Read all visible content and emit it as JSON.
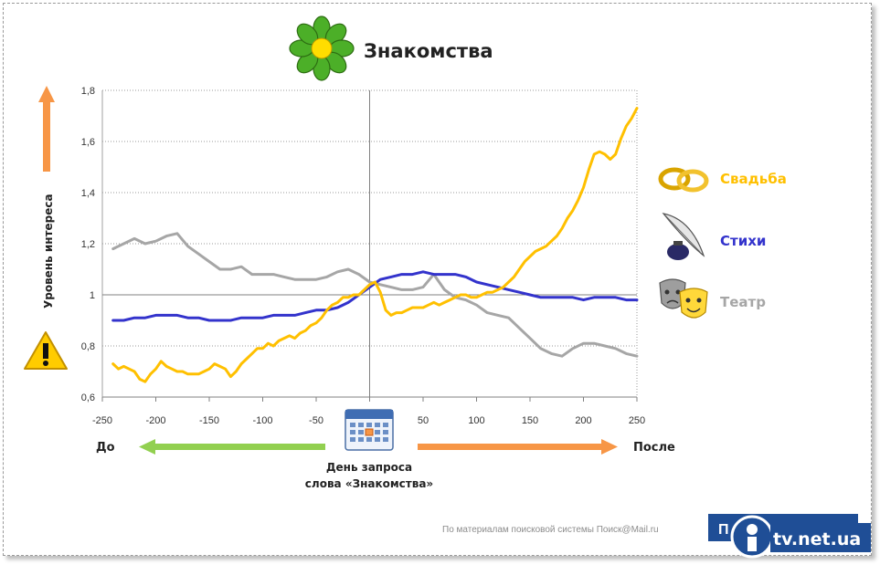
{
  "title": "Знакомства",
  "y_axis_label": "Уровень интереса",
  "before_label": "До",
  "after_label": "После",
  "center_caption_line1": "День запроса",
  "center_caption_line2": "слова «Знакомства»",
  "footer_source": "По материалам поисковой системы Поиск@Mail.ru",
  "footer_button_text": "П",
  "watermark": "tv.net.ua",
  "colors": {
    "yellow": "#ffc000",
    "blue": "#3333cc",
    "gray": "#a6a6a6",
    "green_arrow": "#92d050",
    "orange_arrow": "#f79646",
    "footer_button": "#1f4e96"
  },
  "chart_data": {
    "type": "line",
    "title": "Знакомства",
    "xlim": [
      -250,
      250
    ],
    "ylim": [
      0.6,
      1.8
    ],
    "x_ticks": [
      "-250",
      "-200",
      "-150",
      "-100",
      "-50",
      "0",
      "50",
      "100",
      "150",
      "200",
      "250"
    ],
    "y_ticks": [
      "0,6",
      "0,8",
      "1",
      "1,2",
      "1,4",
      "1,6",
      "1,8"
    ],
    "grid": "horizontal dotted",
    "reference_lines": {
      "x": 0,
      "y": 1
    },
    "legend_placement": "right",
    "series": [
      {
        "name": "Свадьба",
        "color": "#ffc000",
        "x": [
          -240,
          -235,
          -230,
          -225,
          -220,
          -215,
          -210,
          -205,
          -200,
          -195,
          -190,
          -185,
          -180,
          -175,
          -170,
          -165,
          -160,
          -155,
          -150,
          -145,
          -140,
          -135,
          -130,
          -125,
          -120,
          -115,
          -110,
          -105,
          -100,
          -95,
          -90,
          -85,
          -80,
          -75,
          -70,
          -65,
          -60,
          -55,
          -50,
          -45,
          -40,
          -35,
          -30,
          -25,
          -20,
          -15,
          -10,
          -5,
          0,
          5,
          10,
          15,
          20,
          25,
          30,
          35,
          40,
          45,
          50,
          55,
          60,
          65,
          70,
          75,
          80,
          85,
          90,
          95,
          100,
          105,
          110,
          115,
          120,
          125,
          130,
          135,
          140,
          145,
          150,
          155,
          160,
          165,
          170,
          175,
          180,
          185,
          190,
          195,
          200,
          205,
          210,
          215,
          220,
          225,
          230,
          235,
          240,
          245,
          250
        ],
        "y": [
          0.73,
          0.71,
          0.72,
          0.71,
          0.7,
          0.67,
          0.66,
          0.69,
          0.71,
          0.74,
          0.72,
          0.71,
          0.7,
          0.7,
          0.69,
          0.69,
          0.69,
          0.7,
          0.71,
          0.73,
          0.72,
          0.71,
          0.68,
          0.7,
          0.73,
          0.75,
          0.77,
          0.79,
          0.79,
          0.81,
          0.8,
          0.82,
          0.83,
          0.84,
          0.83,
          0.85,
          0.86,
          0.88,
          0.89,
          0.91,
          0.94,
          0.96,
          0.97,
          0.99,
          0.99,
          1.0,
          1.0,
          1.02,
          1.04,
          1.05,
          1.01,
          0.94,
          0.92,
          0.93,
          0.93,
          0.94,
          0.95,
          0.95,
          0.95,
          0.96,
          0.97,
          0.96,
          0.97,
          0.98,
          0.99,
          1.0,
          1.0,
          0.99,
          0.99,
          1.0,
          1.01,
          1.01,
          1.02,
          1.03,
          1.05,
          1.07,
          1.1,
          1.13,
          1.15,
          1.17,
          1.18,
          1.19,
          1.21,
          1.23,
          1.26,
          1.3,
          1.33,
          1.37,
          1.42,
          1.49,
          1.55,
          1.56,
          1.55,
          1.53,
          1.55,
          1.61,
          1.66,
          1.69,
          1.73
        ]
      },
      {
        "name": "Стихи",
        "color": "#3333cc",
        "x": [
          -240,
          -230,
          -220,
          -210,
          -200,
          -190,
          -180,
          -170,
          -160,
          -150,
          -140,
          -130,
          -120,
          -110,
          -100,
          -90,
          -80,
          -70,
          -60,
          -50,
          -40,
          -30,
          -20,
          -10,
          0,
          10,
          20,
          30,
          40,
          50,
          60,
          70,
          80,
          90,
          100,
          110,
          120,
          130,
          140,
          150,
          160,
          170,
          180,
          190,
          200,
          210,
          220,
          230,
          240,
          250
        ],
        "y": [
          0.9,
          0.9,
          0.91,
          0.91,
          0.92,
          0.92,
          0.92,
          0.91,
          0.91,
          0.9,
          0.9,
          0.9,
          0.91,
          0.91,
          0.91,
          0.92,
          0.92,
          0.92,
          0.93,
          0.94,
          0.94,
          0.95,
          0.97,
          1.0,
          1.03,
          1.06,
          1.07,
          1.08,
          1.08,
          1.09,
          1.08,
          1.08,
          1.08,
          1.07,
          1.05,
          1.04,
          1.03,
          1.02,
          1.01,
          1.0,
          0.99,
          0.99,
          0.99,
          0.99,
          0.98,
          0.99,
          0.99,
          0.99,
          0.98,
          0.98
        ]
      },
      {
        "name": "Театр",
        "color": "#a6a6a6",
        "x": [
          -240,
          -230,
          -220,
          -210,
          -200,
          -190,
          -180,
          -170,
          -160,
          -150,
          -140,
          -130,
          -120,
          -110,
          -100,
          -90,
          -80,
          -70,
          -60,
          -50,
          -40,
          -30,
          -20,
          -10,
          0,
          10,
          20,
          30,
          40,
          50,
          60,
          70,
          80,
          90,
          100,
          110,
          120,
          130,
          140,
          150,
          160,
          170,
          180,
          190,
          200,
          210,
          220,
          230,
          240,
          250
        ],
        "y": [
          1.18,
          1.2,
          1.22,
          1.2,
          1.21,
          1.23,
          1.24,
          1.19,
          1.16,
          1.13,
          1.1,
          1.1,
          1.11,
          1.08,
          1.08,
          1.08,
          1.07,
          1.06,
          1.06,
          1.06,
          1.07,
          1.09,
          1.1,
          1.08,
          1.05,
          1.04,
          1.03,
          1.02,
          1.02,
          1.03,
          1.08,
          1.02,
          0.99,
          0.98,
          0.96,
          0.93,
          0.92,
          0.91,
          0.87,
          0.83,
          0.79,
          0.77,
          0.76,
          0.79,
          0.81,
          0.81,
          0.8,
          0.79,
          0.77,
          0.76
        ]
      }
    ]
  }
}
